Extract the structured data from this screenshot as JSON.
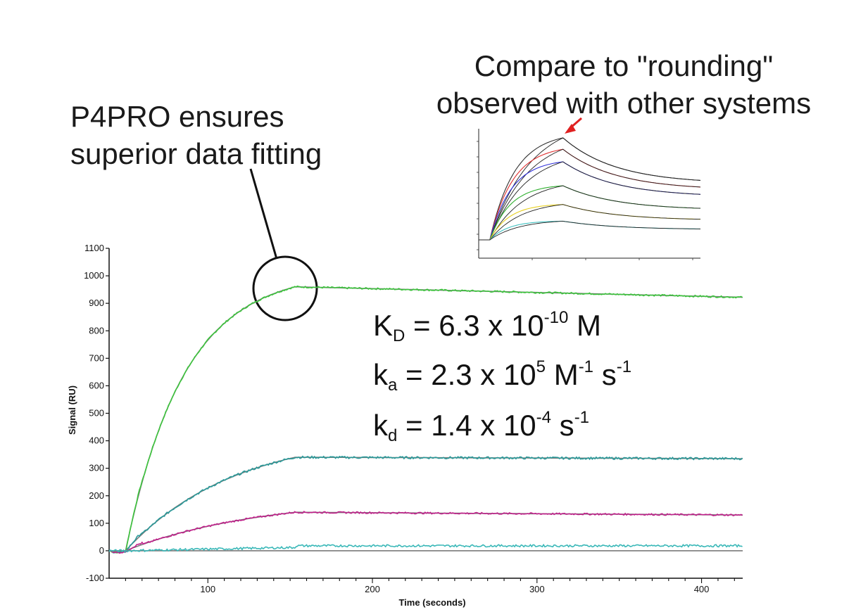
{
  "callouts": {
    "left_line1": "P4PRO ensures",
    "left_line2": "superior data fitting",
    "right_line1": "Compare to \"rounding\"",
    "right_line2": "observed with other systems"
  },
  "constants": {
    "kd_label": "K",
    "kd_sub": "D",
    "kd_eq": " = 6.3 x 10",
    "kd_exp": "-10",
    "kd_unit": " M",
    "ka_label": "k",
    "ka_sub": "a",
    "ka_eq": " = 2.3 x 10",
    "ka_exp": "5",
    "ka_unit1": " M",
    "ka_unit1_exp": "-1",
    "ka_unit2": " s",
    "ka_unit2_exp": "-1",
    "kdi_label": "k",
    "kdi_sub": "d",
    "kdi_eq": " = 1.4 x 10",
    "kdi_exp": "-4",
    "kdi_unit": " s",
    "kdi_unit_exp": "-1"
  },
  "colors": {
    "green": "#3cc43c",
    "teal": "#2a9a9a",
    "magenta": "#c0208a",
    "cyan": "#3ab8b8",
    "fit": "#7a7a7a",
    "arrow": "#e02020"
  },
  "chart_data": [
    {
      "type": "line",
      "xlabel": "Time (seconds)",
      "ylabel": "Signal (RU)",
      "xlim": [
        40,
        425
      ],
      "ylim": [
        -100,
        1100
      ],
      "xticks": [
        100,
        200,
        300,
        400
      ],
      "yticks": [
        -100,
        0,
        100,
        200,
        300,
        400,
        500,
        600,
        700,
        800,
        900,
        1000,
        1100
      ],
      "grid": false,
      "association_start": 50,
      "dissociation_start": 153,
      "series": [
        {
          "color_key": "green",
          "plateau": 960,
          "end": 922,
          "noise": 3
        },
        {
          "color_key": "teal",
          "plateau": 340,
          "end": 335,
          "noise": 4
        },
        {
          "color_key": "magenta",
          "plateau": 140,
          "end": 130,
          "noise": 3
        },
        {
          "color_key": "cyan",
          "plateau": 18,
          "end": 22,
          "noise": 4
        }
      ]
    },
    {
      "type": "line",
      "xlim": [
        0,
        1
      ],
      "ylim": [
        0,
        1
      ],
      "grid": false,
      "series": [
        {
          "color": "#333333",
          "peak": 0.98
        },
        {
          "color": "#e03030",
          "peak": 0.87
        },
        {
          "color": "#3030d8",
          "peak": 0.75
        },
        {
          "color": "#30b030",
          "peak": 0.52
        },
        {
          "color": "#e8d020",
          "peak": 0.34
        },
        {
          "color": "#40c0c0",
          "peak": 0.18
        }
      ]
    }
  ]
}
